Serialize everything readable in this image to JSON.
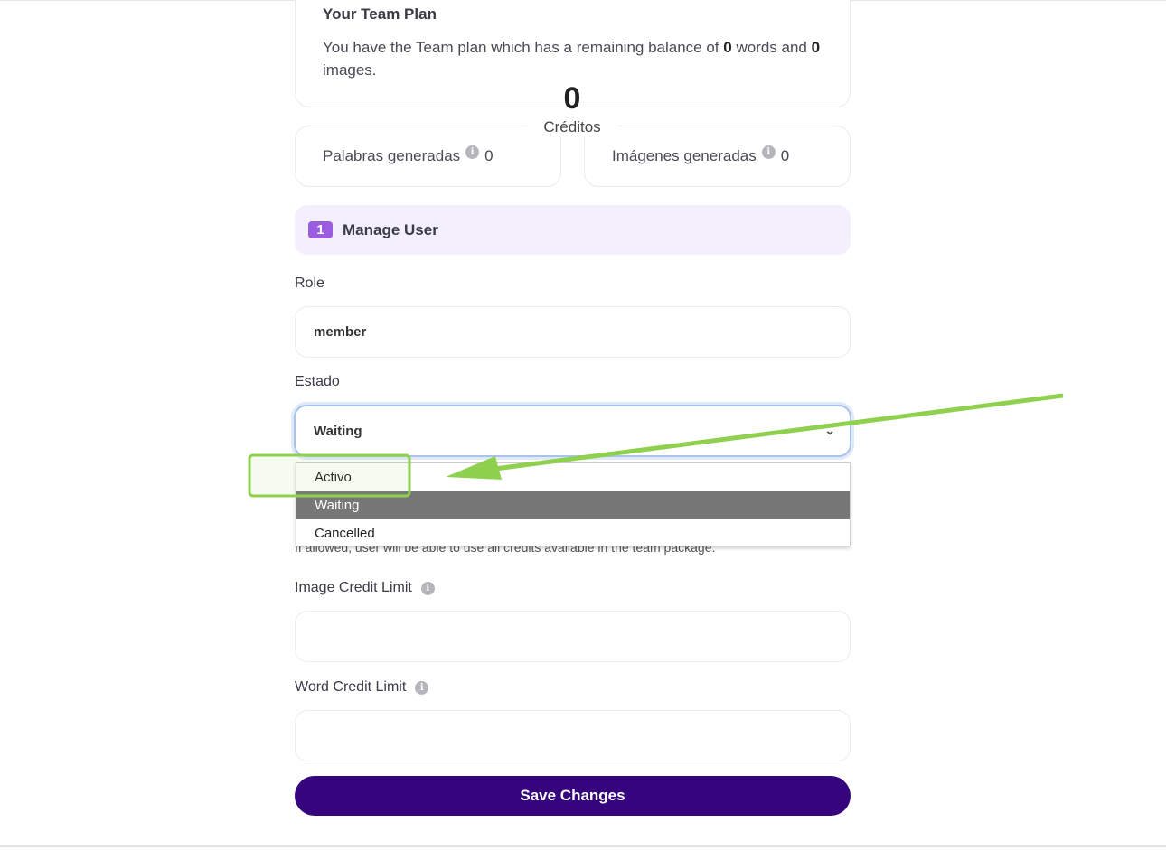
{
  "plan": {
    "title": "Your Team Plan",
    "desc_prefix": "You have the Team plan which has a remaining balance of ",
    "words": "0",
    "desc_mid": " words and ",
    "images": "0",
    "desc_suffix": " images."
  },
  "credits": {
    "value": "0",
    "label": "Créditos"
  },
  "stats": [
    {
      "label": "Palabras generadas",
      "value": "0"
    },
    {
      "label": "Imágenes generadas",
      "value": "0"
    }
  ],
  "manage": {
    "step": "1",
    "title": "Manage User"
  },
  "role": {
    "label": "Role",
    "value": "member"
  },
  "estado": {
    "label": "Estado",
    "value": "Waiting",
    "options": [
      "Activo",
      "Waiting",
      "Cancelled"
    ],
    "selected": "Waiting"
  },
  "hint": "If allowed, user will be able to use all credits available in the team package.",
  "image_limit": {
    "label": "Image Credit Limit",
    "value": ""
  },
  "word_limit": {
    "label": "Word Credit Limit",
    "value": ""
  },
  "save_label": "Save Changes",
  "colors": {
    "annotation": "#8fd14f",
    "primary": "#36057e",
    "badge": "#9b5de0"
  }
}
